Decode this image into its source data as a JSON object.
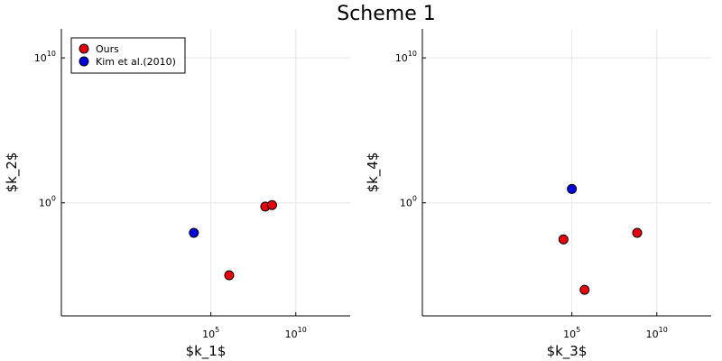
{
  "figure": {
    "title": "Scheme 1"
  },
  "chart_data": [
    {
      "type": "scatter",
      "xlabel": "$k_1$",
      "ylabel": "$k_2$",
      "xscale": "log10",
      "yscale": "log10",
      "xlim_log10": [
        -3.8,
        13.2
      ],
      "ylim_log10": [
        -7.8,
        12.0
      ],
      "xticks": [
        {
          "exp": 5,
          "label_base": "10",
          "label_exp": "5"
        },
        {
          "exp": 10,
          "label_base": "10",
          "label_exp": "10"
        }
      ],
      "yticks": [
        {
          "exp": 0,
          "label_base": "10",
          "label_exp": "0"
        },
        {
          "exp": 10,
          "label_base": "10",
          "label_exp": "10"
        }
      ],
      "grid": true,
      "legend": {
        "position": "top-left",
        "entries": [
          "Ours",
          "Kim et al.(2010)"
        ]
      },
      "series": [
        {
          "name": "Ours",
          "color": "#e8000b",
          "points": [
            [
              1200000.0,
              1e-05
            ],
            [
              160000000.0,
              0.55
            ],
            [
              400000000.0,
              0.7
            ]
          ]
        },
        {
          "name": "Kim et al.(2010)",
          "color": "#0000e0",
          "points": [
            [
              10000.0,
              0.0085
            ]
          ]
        }
      ]
    },
    {
      "type": "scatter",
      "xlabel": "$k_3$",
      "ylabel": "$k_4$",
      "xscale": "log10",
      "yscale": "log10",
      "xlim_log10": [
        -3.8,
        13.2
      ],
      "ylim_log10": [
        -7.8,
        12.0
      ],
      "xticks": [
        {
          "exp": 5,
          "label_base": "10",
          "label_exp": "5"
        },
        {
          "exp": 10,
          "label_base": "10",
          "label_exp": "10"
        }
      ],
      "yticks": [
        {
          "exp": 0,
          "label_base": "10",
          "label_exp": "0"
        },
        {
          "exp": 10,
          "label_base": "10",
          "label_exp": "10"
        }
      ],
      "grid": true,
      "legend": null,
      "series": [
        {
          "name": "Ours",
          "color": "#e8000b",
          "points": [
            [
              32000.0,
              0.003
            ],
            [
              560000.0,
              1e-06
            ],
            [
              700000000.0,
              0.0085
            ]
          ]
        },
        {
          "name": "Kim et al.(2010)",
          "color": "#0000e0",
          "points": [
            [
              100000.0,
              9.0
            ]
          ]
        }
      ]
    }
  ]
}
